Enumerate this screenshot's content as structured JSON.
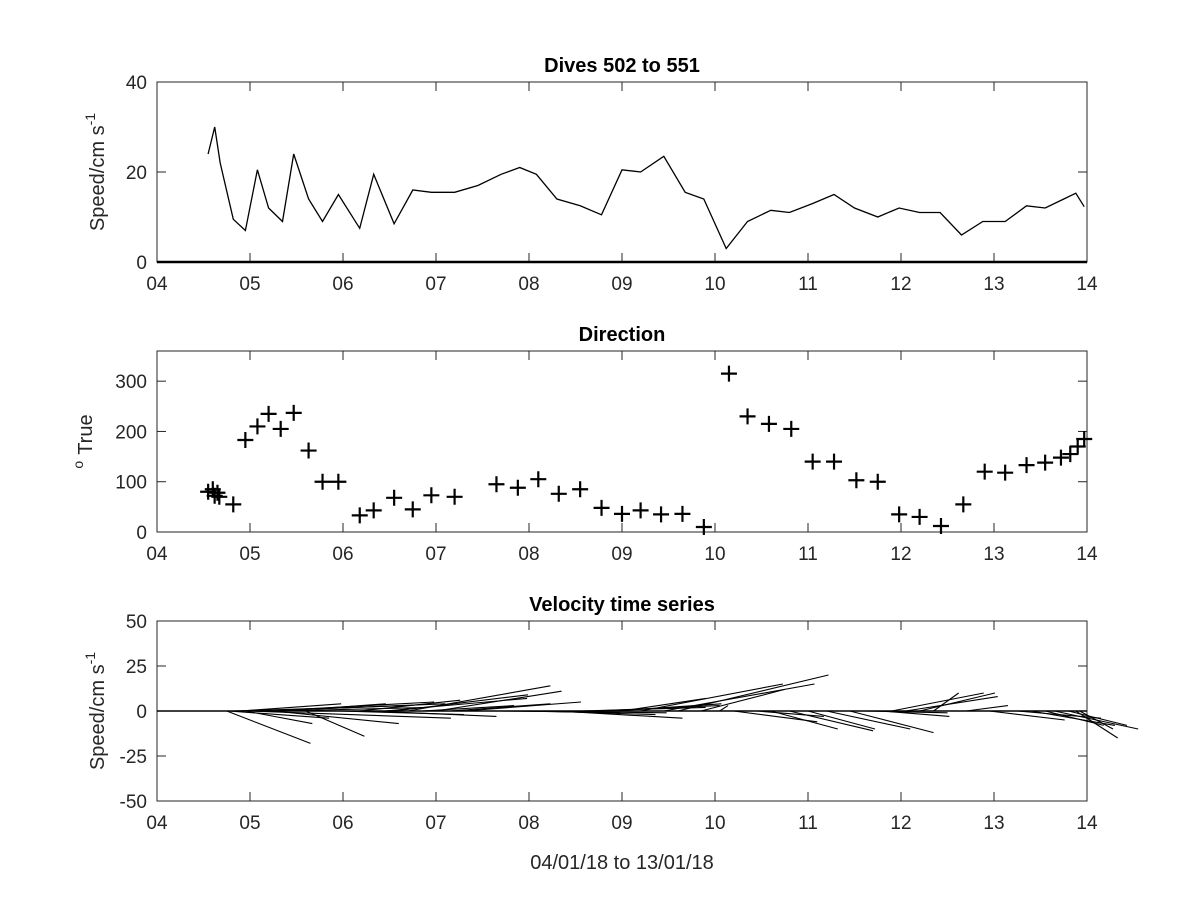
{
  "chart_data": [
    {
      "type": "line",
      "title": "Dives 502 to 551",
      "ylabel": "Speed/cm s",
      "ylabel_sup": "-1",
      "xlabel": "",
      "xlim": [
        4,
        14
      ],
      "ylim": [
        0,
        40
      ],
      "xticks": [
        "04",
        "05",
        "06",
        "07",
        "08",
        "09",
        "10",
        "11",
        "12",
        "13",
        "14"
      ],
      "yticks": [
        "0",
        "20",
        "40"
      ],
      "color": "#000000",
      "x": [
        4.55,
        4.62,
        4.68,
        4.82,
        4.95,
        5.08,
        5.2,
        5.35,
        5.47,
        5.63,
        5.78,
        5.95,
        6.18,
        6.33,
        6.55,
        6.75,
        6.95,
        7.2,
        7.45,
        7.7,
        7.9,
        8.08,
        8.3,
        8.55,
        8.78,
        9.0,
        9.2,
        9.45,
        9.68,
        9.88,
        10.12,
        10.35,
        10.6,
        10.8,
        11.05,
        11.28,
        11.5,
        11.75,
        11.98,
        12.2,
        12.42,
        12.65,
        12.88,
        13.12,
        13.35,
        13.55,
        13.75,
        13.88,
        13.97
      ],
      "y": [
        24,
        30,
        22,
        9.5,
        7,
        20.5,
        12,
        9,
        24,
        14,
        9,
        15,
        7.5,
        19.5,
        8.5,
        16,
        15.5,
        15.5,
        17,
        19.5,
        21,
        19.5,
        14,
        12.5,
        10.5,
        20.5,
        20,
        23.5,
        15.5,
        14,
        3,
        9,
        11.5,
        11,
        13,
        15,
        12,
        10,
        12,
        11,
        11,
        6,
        9,
        9,
        12.5,
        12,
        14,
        15.3,
        12.3
      ]
    },
    {
      "type": "scatter",
      "title": "Direction",
      "ylabel": "True",
      "ylabel_sup": "o",
      "xlabel": "",
      "xlim": [
        4,
        14
      ],
      "ylim": [
        0,
        360
      ],
      "xticks": [
        "04",
        "05",
        "06",
        "07",
        "08",
        "09",
        "10",
        "11",
        "12",
        "13",
        "14"
      ],
      "yticks": [
        "0",
        "100",
        "200",
        "300"
      ],
      "marker": "+",
      "color": "#000000",
      "x": [
        4.55,
        4.6,
        4.62,
        4.65,
        4.67,
        4.82,
        4.95,
        5.08,
        5.2,
        5.33,
        5.47,
        5.63,
        5.78,
        5.95,
        6.18,
        6.33,
        6.55,
        6.75,
        6.95,
        7.2,
        7.65,
        7.88,
        8.1,
        8.32,
        8.55,
        8.78,
        9.0,
        9.2,
        9.42,
        9.65,
        9.88,
        10.15,
        10.35,
        10.58,
        10.82,
        11.05,
        11.28,
        11.52,
        11.75,
        11.98,
        12.2,
        12.43,
        12.67,
        12.9,
        13.12,
        13.35,
        13.55,
        13.72,
        13.82,
        13.9,
        13.97
      ],
      "y": [
        80,
        85,
        72,
        78,
        70,
        55,
        183,
        210,
        235,
        205,
        237,
        162,
        100,
        100,
        33,
        43,
        68,
        45,
        73,
        70,
        95,
        88,
        105,
        76,
        85,
        48,
        36,
        43,
        35,
        36,
        10,
        315,
        230,
        215,
        205,
        140,
        140,
        103,
        100,
        35,
        30,
        12,
        55,
        120,
        118,
        133,
        138,
        148,
        155,
        170,
        185
      ]
    },
    {
      "type": "vector",
      "title": "Velocity time series",
      "ylabel": "Speed/cm s",
      "ylabel_sup": "-1",
      "xlabel": "04/01/18 to 13/01/18",
      "xlim": [
        4,
        14
      ],
      "ylim": [
        -50,
        50
      ],
      "xticks": [
        "04",
        "05",
        "06",
        "07",
        "08",
        "09",
        "10",
        "11",
        "12",
        "13",
        "14"
      ],
      "yticks": [
        "-50",
        "-25",
        "0",
        "25",
        "50"
      ],
      "color": "#000000",
      "note": "Each stick: base at time t on the zero line, components u (east) and v (north) in cm/s.",
      "sticks": [
        {
          "t": 4.75,
          "u": 10,
          "v": -18
        },
        {
          "t": 4.77,
          "u": 12,
          "v": -4
        },
        {
          "t": 4.82,
          "u": 14,
          "v": 2
        },
        {
          "t": 4.9,
          "u": 12,
          "v": 4
        },
        {
          "t": 4.95,
          "u": 8,
          "v": -7
        },
        {
          "t": 5.0,
          "u": 24,
          "v": -4
        },
        {
          "t": 5.05,
          "u": 18,
          "v": 3
        },
        {
          "t": 5.12,
          "u": 22,
          "v": 4
        },
        {
          "t": 5.18,
          "u": 20,
          "v": 5
        },
        {
          "t": 5.25,
          "u": 15,
          "v": -7
        },
        {
          "t": 5.3,
          "u": 18,
          "v": 2
        },
        {
          "t": 5.38,
          "u": 12,
          "v": 4
        },
        {
          "t": 5.6,
          "u": 7,
          "v": -14
        },
        {
          "t": 5.95,
          "u": 15,
          "v": -2
        },
        {
          "t": 6.18,
          "u": 12,
          "v": 6
        },
        {
          "t": 6.3,
          "u": 15,
          "v": -3
        },
        {
          "t": 6.45,
          "u": 17,
          "v": 7
        },
        {
          "t": 6.55,
          "u": 16,
          "v": 9
        },
        {
          "t": 6.7,
          "u": 17,
          "v": 14
        },
        {
          "t": 6.85,
          "u": 11,
          "v": 3
        },
        {
          "t": 7.0,
          "u": 15,
          "v": 11
        },
        {
          "t": 7.15,
          "u": 12,
          "v": 4
        },
        {
          "t": 7.3,
          "u": 14,
          "v": 5
        },
        {
          "t": 7.68,
          "u": 20,
          "v": -1
        },
        {
          "t": 7.9,
          "u": 12,
          "v": -1
        },
        {
          "t": 8.1,
          "u": 14,
          "v": -2
        },
        {
          "t": 8.3,
          "u": 15,
          "v": -4
        },
        {
          "t": 8.55,
          "u": 15,
          "v": 2
        },
        {
          "t": 8.7,
          "u": 15,
          "v": 3
        },
        {
          "t": 8.9,
          "u": 13,
          "v": 4
        },
        {
          "t": 9.0,
          "u": 10,
          "v": 7
        },
        {
          "t": 9.2,
          "u": 17,
          "v": 15
        },
        {
          "t": 9.45,
          "u": 18,
          "v": 15
        },
        {
          "t": 9.6,
          "u": 18,
          "v": 20
        },
        {
          "t": 9.85,
          "u": 10,
          "v": 12
        },
        {
          "t": 10.05,
          "u": 1,
          "v": 3
        },
        {
          "t": 10.2,
          "u": 10,
          "v": -6
        },
        {
          "t": 10.45,
          "u": 8,
          "v": -3
        },
        {
          "t": 10.6,
          "u": 8,
          "v": -10
        },
        {
          "t": 10.8,
          "u": 10,
          "v": -11
        },
        {
          "t": 11.0,
          "u": 8,
          "v": -10
        },
        {
          "t": 11.2,
          "u": 10,
          "v": -10
        },
        {
          "t": 11.45,
          "u": 10,
          "v": -12
        },
        {
          "t": 11.6,
          "u": 10,
          "v": -1
        },
        {
          "t": 11.8,
          "u": 8,
          "v": -3
        },
        {
          "t": 11.9,
          "u": 11,
          "v": 10
        },
        {
          "t": 12.05,
          "u": 11,
          "v": 8
        },
        {
          "t": 12.2,
          "u": 9,
          "v": 10
        },
        {
          "t": 12.35,
          "u": 3,
          "v": 10
        },
        {
          "t": 12.7,
          "u": 5,
          "v": 3
        },
        {
          "t": 12.95,
          "u": 9,
          "v": -5
        },
        {
          "t": 13.25,
          "u": 10,
          "v": -4
        },
        {
          "t": 13.4,
          "u": 10,
          "v": -8
        },
        {
          "t": 13.55,
          "u": 7,
          "v": -8
        },
        {
          "t": 13.65,
          "u": 10,
          "v": -10
        },
        {
          "t": 13.8,
          "u": 7,
          "v": -8
        },
        {
          "t": 13.88,
          "u": 5,
          "v": -15
        },
        {
          "t": 13.92,
          "u": 4,
          "v": -10
        }
      ]
    }
  ]
}
